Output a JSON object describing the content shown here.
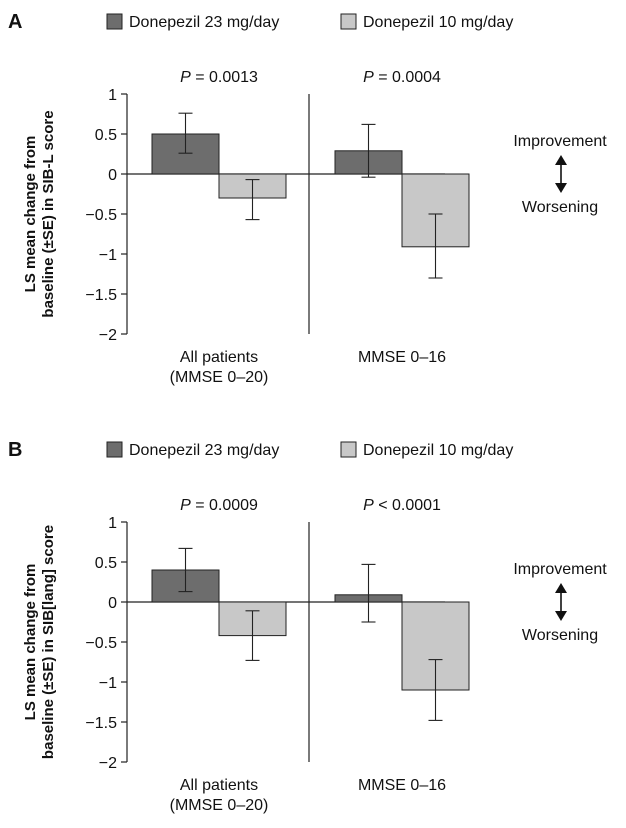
{
  "colors": {
    "series1": "#6d6d6d",
    "series2": "#c8c8c8",
    "stroke": "#222222",
    "text": "#111111"
  },
  "chart_data": [
    {
      "type": "bar",
      "panel_label": "A",
      "legend": [
        "Donepezil 23 mg/day",
        "Donepezil 10 mg/day"
      ],
      "ylabel_lines": [
        "LS mean change from",
        "baseline (±SE) in SIB-L score"
      ],
      "ylim": [
        -2,
        1
      ],
      "yticks": [
        1,
        0.5,
        0,
        -0.5,
        -1,
        -1.5,
        -2
      ],
      "ytick_labels": [
        "1",
        "0.5",
        "0",
        "−0.5",
        "−1",
        "−1.5",
        "−2"
      ],
      "categories": [
        {
          "lines": [
            "All patients",
            "(MMSE 0–20)"
          ],
          "p_prefix": "P",
          "p_rest": " = 0.0013"
        },
        {
          "lines": [
            "MMSE 0–16"
          ],
          "p_prefix": "P",
          "p_rest": " = 0.0004"
        }
      ],
      "series": [
        {
          "name": "Donepezil 23 mg/day",
          "values": [
            0.5,
            0.29
          ],
          "err_high": [
            0.76,
            0.62
          ],
          "err_low": [
            0.26,
            -0.04
          ]
        },
        {
          "name": "Donepezil 10 mg/day",
          "values": [
            -0.3,
            -0.91
          ],
          "err_high": [
            -0.07,
            -0.5
          ],
          "err_low": [
            -0.57,
            -1.3
          ]
        }
      ],
      "direction": {
        "up": "Improvement",
        "down": "Worsening"
      }
    },
    {
      "type": "bar",
      "panel_label": "B",
      "legend": [
        "Donepezil 23 mg/day",
        "Donepezil 10 mg/day"
      ],
      "ylabel_lines": [
        "LS mean change from",
        "baseline (±SE) in SIB[lang] score"
      ],
      "ylim": [
        -2,
        1
      ],
      "yticks": [
        1,
        0.5,
        0,
        -0.5,
        -1,
        -1.5,
        -2
      ],
      "ytick_labels": [
        "1",
        "0.5",
        "0",
        "−0.5",
        "−1",
        "−1.5",
        "−2"
      ],
      "categories": [
        {
          "lines": [
            "All patients",
            "(MMSE 0–20)"
          ],
          "p_prefix": "P",
          "p_rest": " = 0.0009"
        },
        {
          "lines": [
            "MMSE 0–16"
          ],
          "p_prefix": "P",
          "p_rest": " < 0.0001"
        }
      ],
      "series": [
        {
          "name": "Donepezil 23 mg/day",
          "values": [
            0.4,
            0.09
          ],
          "err_high": [
            0.67,
            0.47
          ],
          "err_low": [
            0.13,
            -0.25
          ]
        },
        {
          "name": "Donepezil 10 mg/day",
          "values": [
            -0.42,
            -1.1
          ],
          "err_high": [
            -0.11,
            -0.72
          ],
          "err_low": [
            -0.73,
            -1.48
          ]
        }
      ],
      "direction": {
        "up": "Improvement",
        "down": "Worsening"
      }
    }
  ]
}
